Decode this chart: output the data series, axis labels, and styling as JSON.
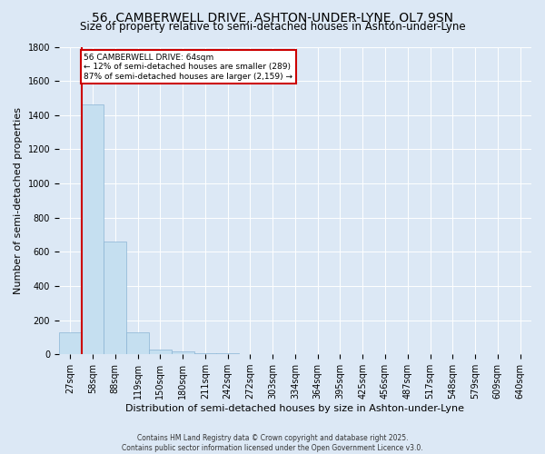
{
  "title": "56, CAMBERWELL DRIVE, ASHTON-UNDER-LYNE, OL7 9SN",
  "subtitle": "Size of property relative to semi-detached houses in Ashton-under-Lyne",
  "xlabel": "Distribution of semi-detached houses by size in Ashton-under-Lyne",
  "ylabel": "Number of semi-detached properties",
  "footnote1": "Contains HM Land Registry data © Crown copyright and database right 2025.",
  "footnote2": "Contains public sector information licensed under the Open Government Licence v3.0.",
  "bin_labels": [
    "27sqm",
    "58sqm",
    "88sqm",
    "119sqm",
    "150sqm",
    "180sqm",
    "211sqm",
    "242sqm",
    "272sqm",
    "303sqm",
    "334sqm",
    "364sqm",
    "395sqm",
    "425sqm",
    "456sqm",
    "487sqm",
    "517sqm",
    "548sqm",
    "579sqm",
    "609sqm",
    "640sqm"
  ],
  "bar_values": [
    130,
    1460,
    660,
    130,
    30,
    15,
    8,
    5,
    3,
    2,
    1,
    0,
    0,
    0,
    0,
    0,
    0,
    0,
    0,
    0,
    0
  ],
  "bar_color": "#c5dff0",
  "bar_edge_color": "#8ab4d4",
  "background_color": "#dce8f5",
  "red_line_color": "#cc0000",
  "annotation_line1": "56 CAMBERWELL DRIVE: 64sqm",
  "annotation_line2": "← 12% of semi-detached houses are smaller (289)",
  "annotation_line3": "87% of semi-detached houses are larger (2,159) →",
  "annotation_box_color": "#cc0000",
  "ylim": [
    0,
    1800
  ],
  "yticks": [
    0,
    200,
    400,
    600,
    800,
    1000,
    1200,
    1400,
    1600,
    1800
  ],
  "grid_color": "#ffffff",
  "title_fontsize": 10,
  "subtitle_fontsize": 8.5,
  "axis_label_fontsize": 8,
  "tick_fontsize": 7,
  "footnote_fontsize": 5.5
}
